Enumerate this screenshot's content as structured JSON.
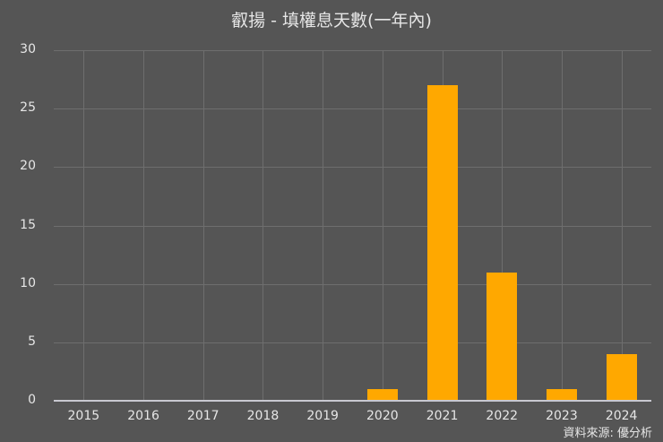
{
  "title": "叡揚 - 填權息天數(一年內)",
  "source": "資料來源: 優分析",
  "colors": {
    "background": "#555555",
    "bar": "#ffa800",
    "grid": "#6e6e6e",
    "text": "#e6e6e6"
  },
  "chart_data": {
    "type": "bar",
    "title": "叡揚 - 填權息天數(一年內)",
    "xlabel": "",
    "ylabel": "",
    "categories": [
      "2015",
      "2016",
      "2017",
      "2018",
      "2019",
      "2020",
      "2021",
      "2022",
      "2023",
      "2024"
    ],
    "values": [
      0,
      0,
      0,
      0,
      0,
      1,
      27,
      11,
      1,
      4
    ],
    "ylim": [
      0,
      30
    ],
    "yticks": [
      0,
      5,
      10,
      15,
      20,
      25,
      30
    ],
    "grid": true,
    "legend": null,
    "annotations": [
      "資料來源: 優分析"
    ]
  }
}
